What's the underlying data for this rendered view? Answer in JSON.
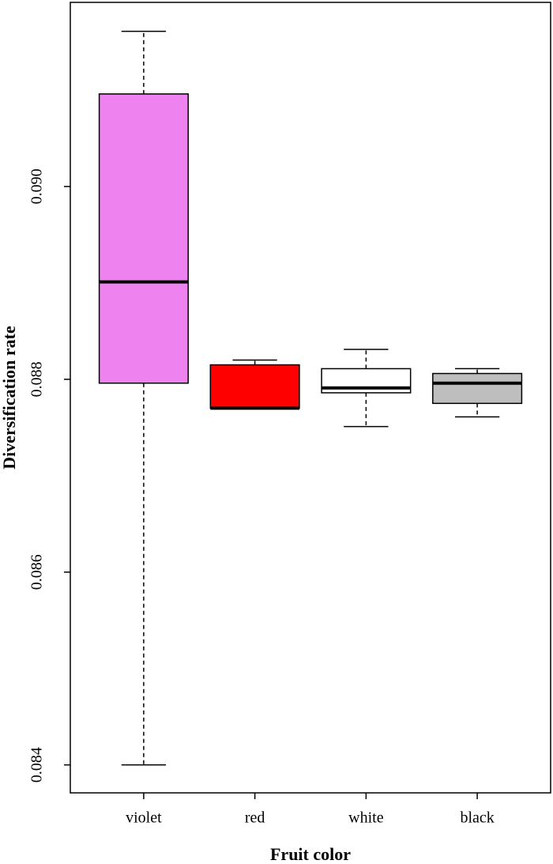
{
  "chart_data": {
    "type": "box",
    "xlabel": "Fruit color",
    "ylabel": "Diversification  rate",
    "categories": [
      "violet",
      "red",
      "white",
      "black"
    ],
    "colors": [
      "#ee82ee",
      "#ff0000",
      "#ffffff",
      "#bebebe"
    ],
    "min": [
      0.084,
      0.0877,
      0.08751,
      0.08761
    ],
    "q1": [
      0.08796,
      0.0877,
      0.08786,
      0.08775
    ],
    "median": [
      0.08901,
      0.0877,
      0.08791,
      0.08796
    ],
    "q3": [
      0.09096,
      0.08815,
      0.08811,
      0.08806
    ],
    "max": [
      0.09161,
      0.0882,
      0.08831,
      0.08811
    ],
    "ylim": [
      0.08371,
      0.09191
    ],
    "yticks": [
      0.084,
      0.086,
      0.088,
      {
        "value": 0.09,
        "label": "0.090"
      }
    ]
  }
}
